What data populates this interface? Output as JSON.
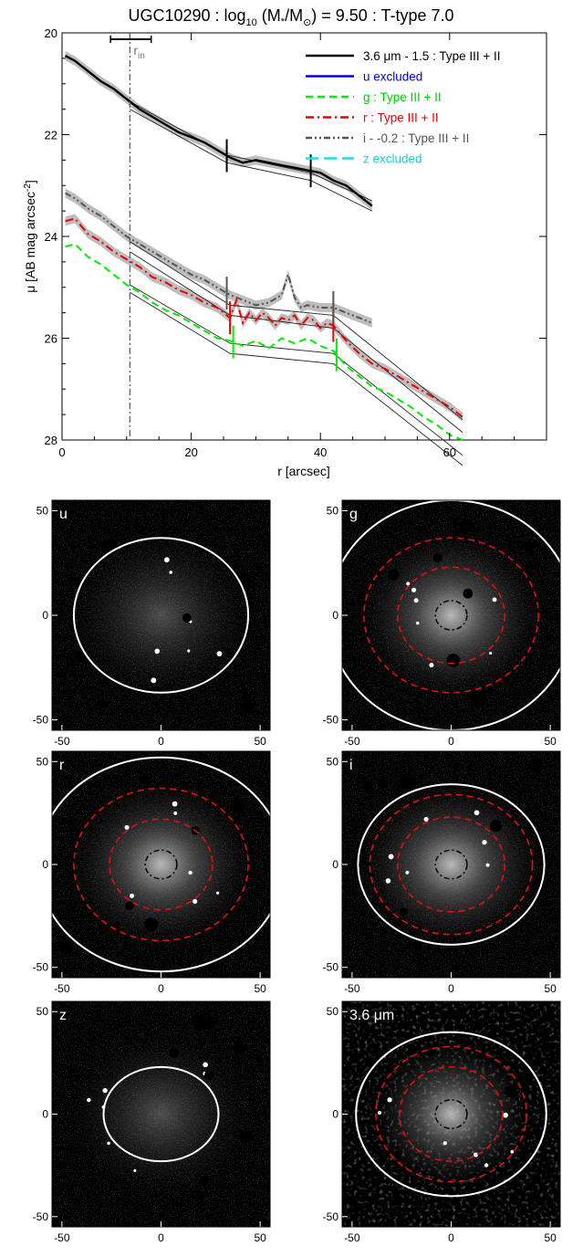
{
  "chart_data": [
    {
      "type": "line",
      "title": "UGC10290 : log",
      "title_sub": "10",
      "title_tail": " (M",
      "title_star": "*",
      "title_tail2": "/M",
      "title_sun": "⊙",
      "title_end": ") = 9.50 : T-type 7.0",
      "xlabel": "r [arcsec]",
      "ylabel": "μ [AB mag arcsec",
      "ylabel_sup": "-2",
      "ylabel_end": "]",
      "xlim": [
        0,
        75
      ],
      "ylim": [
        28,
        20
      ],
      "xticks": [
        "0",
        "20",
        "40",
        "60"
      ],
      "yticks": [
        "20",
        "22",
        "24",
        "26",
        "28"
      ],
      "rin_label": "r",
      "rin_sub": "in",
      "rin_value": 10.5,
      "rin_err": [
        7.5,
        13.8
      ],
      "legend": [
        {
          "label": "3.6 μm - 1.5 : Type III + II",
          "color": "#000000",
          "style": "solid",
          "textColor": "#000000"
        },
        {
          "label": "u excluded",
          "color": "#0000dd",
          "style": "solid",
          "textColor": "#0000dd"
        },
        {
          "label": "g : Type III + II",
          "color": "#00ee00",
          "style": "dash",
          "textColor": "#00cc00"
        },
        {
          "label": "r : Type III + II",
          "color": "#ee0000",
          "style": "dashdot",
          "textColor": "#ee0000"
        },
        {
          "label": "i - -0.2 : Type III + II",
          "color": "#555555",
          "style": "dashdotdot",
          "textColor": "#555555"
        },
        {
          "label": "z excluded",
          "color": "#22dddd",
          "style": "longdash",
          "textColor": "#22cccc"
        }
      ],
      "series": [
        {
          "name": "3.6 μm - 1.5",
          "color": "#000000",
          "style": "solid",
          "x": [
            0.5,
            2,
            4,
            6,
            8,
            10,
            12,
            14,
            16,
            18,
            20,
            22,
            24,
            26,
            28,
            30,
            32,
            34,
            36,
            38,
            40,
            42,
            44,
            46,
            48
          ],
          "y": [
            20.45,
            20.55,
            20.75,
            20.95,
            21.1,
            21.3,
            21.5,
            21.65,
            21.8,
            21.95,
            22.05,
            22.15,
            22.3,
            22.45,
            22.55,
            22.5,
            22.55,
            22.6,
            22.65,
            22.7,
            22.75,
            22.9,
            23.0,
            23.2,
            23.4
          ],
          "breaks": [
            25.5,
            38.5
          ]
        },
        {
          "name": "r",
          "color": "#ee0000",
          "style": "dashdot",
          "x": [
            0.5,
            2,
            4,
            6,
            8,
            10,
            12,
            14,
            16,
            18,
            20,
            22,
            24,
            26,
            27,
            28,
            29,
            30,
            31,
            32,
            33,
            34,
            35,
            36,
            37,
            38,
            39,
            40,
            41,
            42,
            44,
            46,
            48,
            50,
            52,
            54,
            56,
            58,
            60,
            62
          ],
          "y": [
            23.7,
            23.65,
            23.95,
            24.1,
            24.3,
            24.45,
            24.6,
            24.8,
            24.9,
            25.05,
            25.15,
            25.3,
            25.4,
            25.6,
            25.25,
            25.7,
            25.5,
            25.65,
            25.5,
            25.6,
            25.75,
            25.6,
            25.65,
            25.55,
            25.75,
            25.6,
            25.65,
            25.8,
            25.7,
            25.75,
            26.05,
            26.3,
            26.5,
            26.6,
            26.75,
            26.9,
            27.05,
            27.2,
            27.35,
            27.55
          ],
          "breaks": [
            26.0,
            42.0
          ]
        },
        {
          "name": "i - -0.2",
          "color": "#555555",
          "style": "dashdotdot",
          "x": [
            0.5,
            2,
            4,
            6,
            8,
            10,
            12,
            14,
            16,
            18,
            20,
            22,
            24,
            26,
            28,
            30,
            32,
            34,
            35,
            36,
            37,
            38,
            40,
            42,
            44,
            46,
            48
          ],
          "y": [
            23.15,
            23.25,
            23.45,
            23.6,
            23.8,
            24.0,
            24.15,
            24.3,
            24.45,
            24.6,
            24.75,
            24.85,
            25.0,
            25.15,
            25.25,
            25.35,
            25.3,
            25.15,
            24.75,
            25.2,
            25.4,
            25.35,
            25.4,
            25.4,
            25.5,
            25.6,
            25.7
          ],
          "breaks": [
            25.5,
            42.0
          ]
        },
        {
          "name": "g",
          "color": "#00ee00",
          "style": "dash",
          "x": [
            0.5,
            2,
            4,
            6,
            8,
            10,
            12,
            14,
            16,
            18,
            20,
            22,
            24,
            26,
            28,
            30,
            32,
            34,
            36,
            38,
            40,
            42,
            44,
            46,
            48,
            50,
            52,
            54,
            56,
            58,
            60,
            62
          ],
          "y": [
            24.2,
            24.15,
            24.4,
            24.55,
            24.75,
            24.95,
            25.1,
            25.3,
            25.45,
            25.55,
            25.7,
            25.85,
            26.0,
            26.05,
            26.15,
            26.05,
            26.2,
            26.0,
            26.1,
            26.0,
            26.15,
            26.25,
            26.55,
            26.75,
            26.95,
            27.05,
            27.2,
            27.35,
            27.55,
            27.7,
            27.9,
            28.0
          ],
          "breaks": [
            26.5,
            42.5
          ]
        }
      ],
      "fits": [
        {
          "x": [
            10.5,
            26,
            42,
            62
          ],
          "y": [
            24.1,
            25.35,
            25.55,
            27.6
          ]
        },
        {
          "x": [
            10.5,
            26,
            42,
            62
          ],
          "y": [
            24.3,
            25.55,
            25.8,
            27.85
          ]
        },
        {
          "x": [
            10.5,
            26,
            42,
            62
          ],
          "y": [
            24.95,
            26.1,
            26.3,
            28.3
          ]
        },
        {
          "x": [
            10.5,
            26,
            42,
            62
          ],
          "y": [
            25.1,
            26.3,
            26.5,
            28.5
          ]
        },
        {
          "x": [
            10.5,
            25.5,
            38.5,
            48
          ],
          "y": [
            21.35,
            22.4,
            22.75,
            23.3
          ]
        },
        {
          "x": [
            10.5,
            25.5,
            38.5,
            48
          ],
          "y": [
            21.5,
            22.55,
            22.9,
            23.5
          ]
        }
      ]
    },
    {
      "type": "image-grid",
      "panels": [
        {
          "label": "u",
          "xticks": [
            "-50",
            "0",
            "50"
          ],
          "yticks": [
            "50",
            "0",
            "-50"
          ],
          "white_ellipse": [
            44,
            37
          ],
          "red_ellipses": [],
          "black_ellipse": null
        },
        {
          "label": "g",
          "xticks": [
            "-50",
            "0",
            "50"
          ],
          "yticks": [
            "50",
            "0",
            "-50"
          ],
          "white_ellipse": [
            62,
            55
          ],
          "red_ellipses": [
            [
              44,
              37
            ],
            [
              27,
              23
            ]
          ],
          "black_ellipse": [
            8,
            7
          ]
        },
        {
          "label": "r",
          "xticks": [
            "-50",
            "0",
            "50"
          ],
          "yticks": [
            "50",
            "0",
            "-50"
          ],
          "white_ellipse": [
            62,
            52
          ],
          "red_ellipses": [
            [
              44,
              37
            ],
            [
              26,
              22
            ]
          ],
          "black_ellipse": [
            8,
            7
          ]
        },
        {
          "label": "i",
          "xticks": [
            "-50",
            "0",
            "50"
          ],
          "yticks": [
            "50",
            "0",
            "-50"
          ],
          "white_ellipse": [
            47,
            39
          ],
          "red_ellipses": [
            [
              41,
              34
            ],
            [
              27,
              23
            ]
          ],
          "black_ellipse": [
            8,
            7
          ]
        },
        {
          "label": "z",
          "xticks": [
            "-50",
            "0",
            "50"
          ],
          "yticks": [
            "50",
            "0",
            "-50"
          ],
          "white_ellipse": [
            29,
            23
          ],
          "red_ellipses": [],
          "black_ellipse": null
        },
        {
          "label": "3.6 μm",
          "xticks": [
            "-50",
            "0",
            "50"
          ],
          "yticks": [
            "50",
            "0",
            "-50"
          ],
          "white_ellipse": [
            48,
            40
          ],
          "red_ellipses": [
            [
              38,
              33
            ],
            [
              26,
              23
            ]
          ],
          "black_ellipse": [
            8,
            7
          ]
        }
      ]
    }
  ]
}
